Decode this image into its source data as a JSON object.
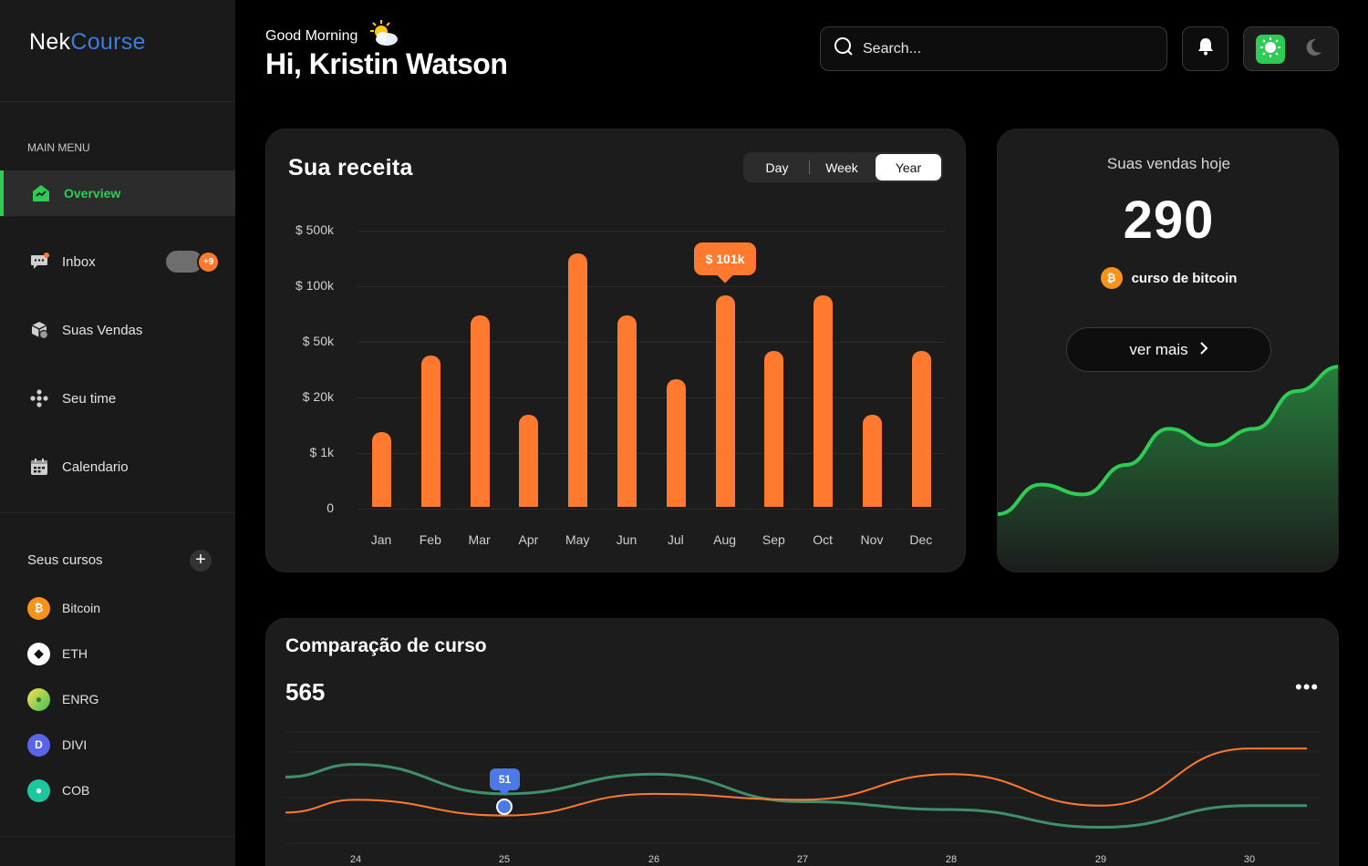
{
  "brand": {
    "part1": "Nek",
    "part2": "Course"
  },
  "sidebar": {
    "menu_title": "MAIN MENU",
    "items": [
      {
        "label": "Overview",
        "icon": "overview-icon",
        "active": true
      },
      {
        "label": "Inbox",
        "icon": "chat-icon",
        "badge": "+9"
      },
      {
        "label": "Suas Vendas",
        "icon": "box-icon"
      },
      {
        "label": "Seu time",
        "icon": "team-icon"
      },
      {
        "label": "Calendario",
        "icon": "calendar-icon"
      }
    ],
    "courses_title": "Seus cursos",
    "add_label": "+",
    "courses": [
      {
        "label": "Bitcoin",
        "symbol": "₿",
        "color": "#f7931a"
      },
      {
        "label": "ETH",
        "symbol": "◆",
        "color": "#ffffff"
      },
      {
        "label": "ENRG",
        "symbol": "●",
        "color": "#8bc34a"
      },
      {
        "label": "DIVI",
        "symbol": "D",
        "color": "#5b63e8"
      },
      {
        "label": "COB",
        "symbol": "●",
        "color": "#1fc7a0"
      }
    ]
  },
  "header": {
    "greeting": "Good Morning",
    "name": "Hi, Kristin Watson",
    "search_placeholder": "Search..."
  },
  "revenue": {
    "title": "Sua receita",
    "periods": [
      "Day",
      "Week",
      "Year"
    ],
    "selected_period": "Year",
    "tooltip": "$ 101k",
    "accent": "#ff7a2f"
  },
  "chart_data": [
    {
      "type": "bar",
      "title": "Sua receita",
      "categories": [
        "Jan",
        "Feb",
        "Mar",
        "Apr",
        "May",
        "Jun",
        "Jul",
        "Aug",
        "Sep",
        "Oct",
        "Nov",
        "Dec"
      ],
      "y_tick_labels": [
        "$ 500k",
        "$ 100k",
        "$ 50k",
        "$ 20k",
        "$ 1k",
        "0"
      ],
      "y_tick_values": [
        500,
        100,
        50,
        20,
        1,
        0
      ],
      "y_scale": "non-linear (tick labels evenly spaced)",
      "values_position_in_ticks": [
        1.35,
        2.72,
        3.45,
        1.65,
        4.55,
        3.45,
        2.3,
        3.8,
        2.8,
        3.8,
        1.65,
        2.8
      ],
      "highlight": {
        "category": "Aug",
        "label": "$ 101k"
      },
      "grid": true
    },
    {
      "type": "area",
      "title": "Suas vendas hoje",
      "trend": "rising",
      "values": [
        10,
        28,
        22,
        40,
        62,
        52,
        62,
        85,
        100
      ],
      "color": "#2ecc55"
    },
    {
      "type": "line",
      "title": "Comparação de curso",
      "x": [
        "24",
        "25",
        "26",
        "27",
        "28",
        "29",
        "30"
      ],
      "series": [
        {
          "values": [
            82,
            52,
            72,
            44,
            36,
            18,
            40
          ],
          "color": "#3f8f6a"
        },
        {
          "values": [
            46,
            30,
            52,
            46,
            72,
            40,
            98
          ],
          "color": "#ff7a2f"
        }
      ],
      "highlight": {
        "x": "25",
        "label": "51"
      },
      "grid": true
    }
  ],
  "sales": {
    "title": "Suas vendas hoje",
    "value": "290",
    "course": "curso de bitcoin",
    "button": "ver mais"
  },
  "comparison": {
    "title": "Comparação de curso",
    "value": "565",
    "menu": "•••",
    "tooltip": "51"
  }
}
